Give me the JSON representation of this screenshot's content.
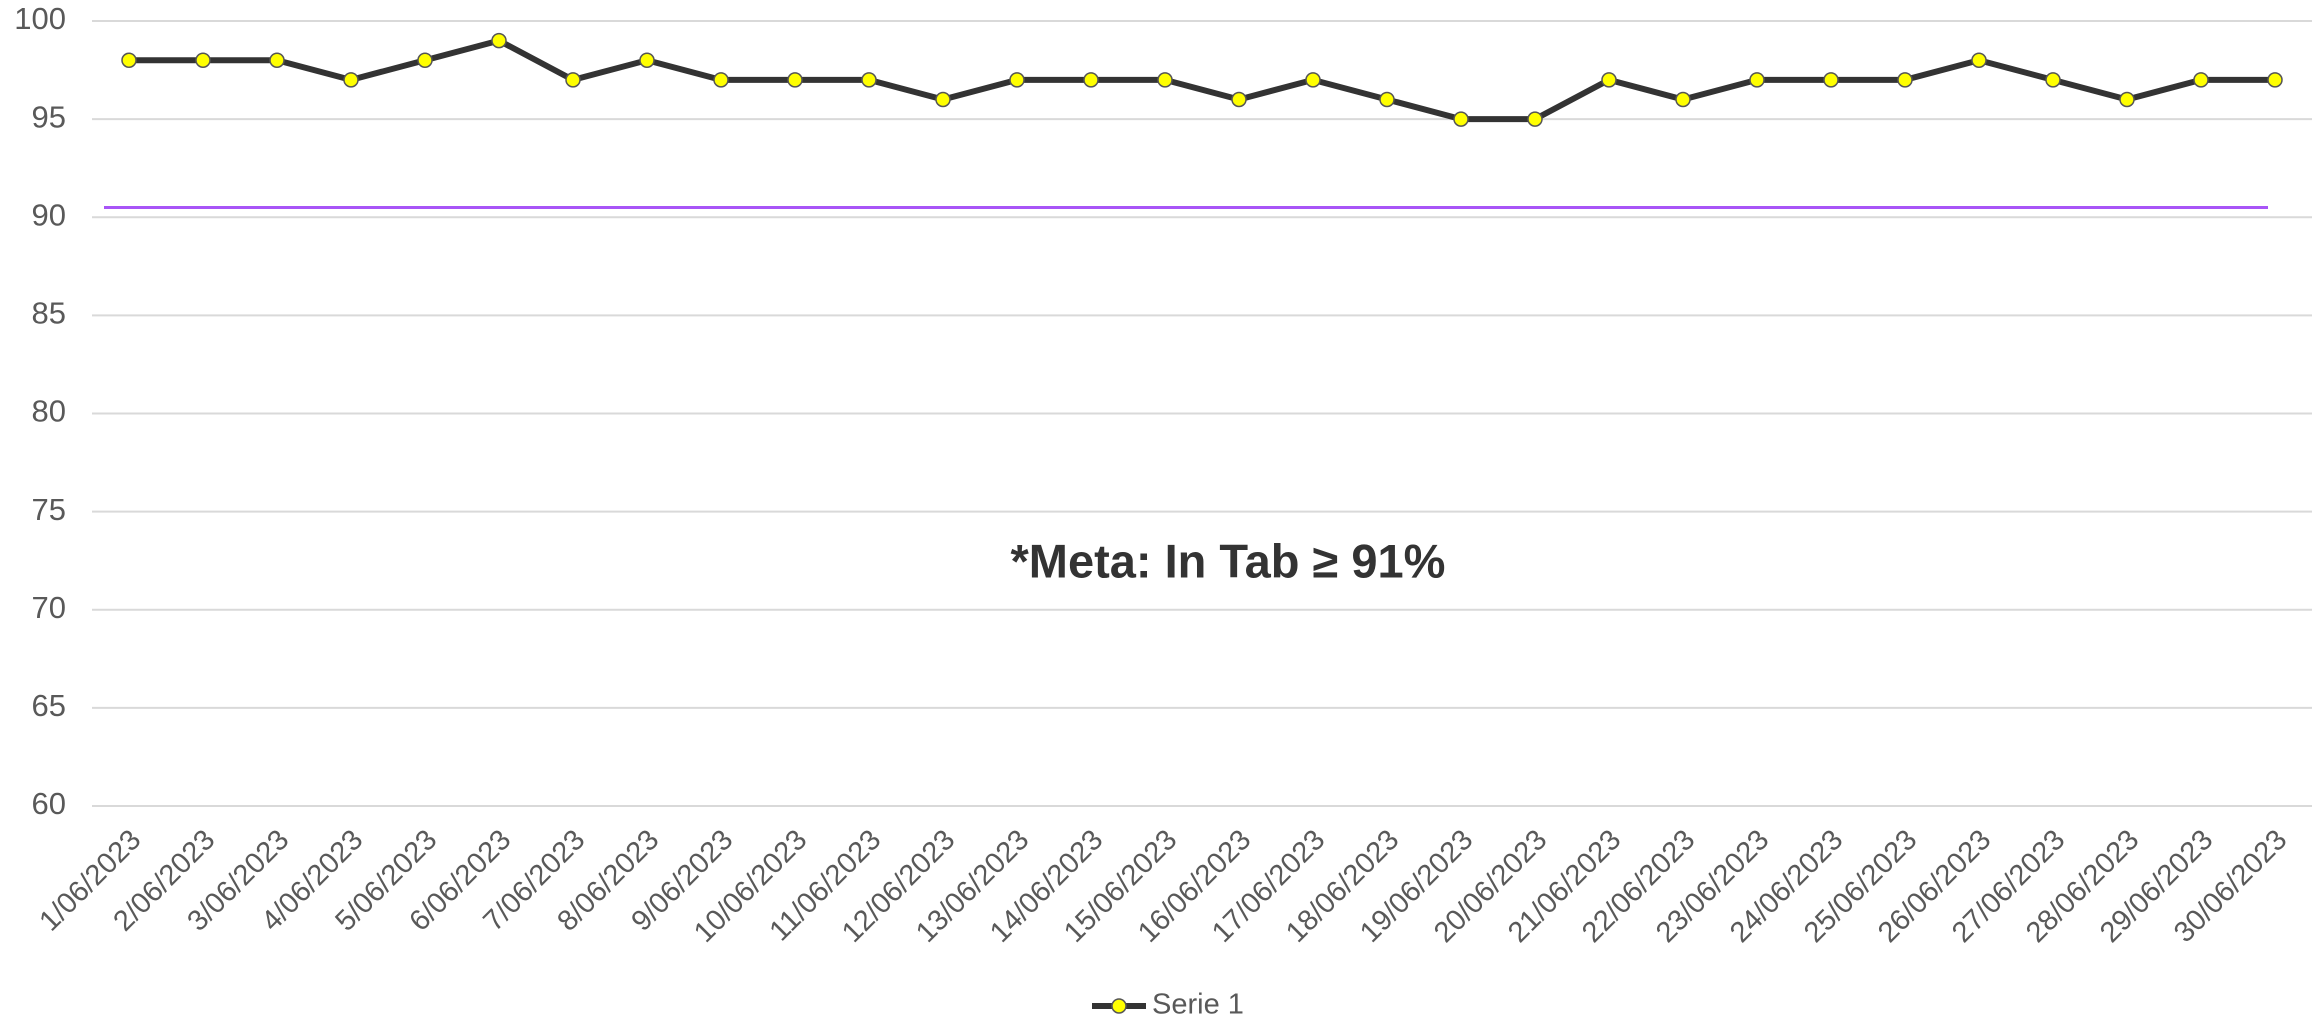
{
  "chart_data": {
    "type": "line",
    "categories": [
      "1/06/2023",
      "2/06/2023",
      "3/06/2023",
      "4/06/2023",
      "5/06/2023",
      "6/06/2023",
      "7/06/2023",
      "8/06/2023",
      "9/06/2023",
      "10/06/2023",
      "11/06/2023",
      "12/06/2023",
      "13/06/2023",
      "14/06/2023",
      "15/06/2023",
      "16/06/2023",
      "17/06/2023",
      "18/06/2023",
      "19/06/2023",
      "20/06/2023",
      "21/06/2023",
      "22/06/2023",
      "23/06/2023",
      "24/06/2023",
      "25/06/2023",
      "26/06/2023",
      "27/06/2023",
      "28/06/2023",
      "29/06/2023",
      "30/06/2023"
    ],
    "series": [
      {
        "name": "Serie 1",
        "color": "#333333",
        "marker_color": "#ffff00",
        "values": [
          98,
          98,
          98,
          97,
          98,
          99,
          97,
          98,
          97,
          97,
          97,
          96,
          97,
          97,
          97,
          96,
          97,
          96,
          95,
          95,
          97,
          96,
          97,
          97,
          97,
          98,
          97,
          96,
          97,
          97
        ]
      }
    ],
    "reference_line": {
      "value": 90.5,
      "color": "#a855f7"
    },
    "annotation": "*Meta: In Tab ≥ 91%",
    "ylim": [
      60,
      100
    ],
    "yticks": [
      60,
      65,
      70,
      75,
      80,
      85,
      90,
      95,
      100
    ],
    "grid": true,
    "legend": "bottom"
  }
}
